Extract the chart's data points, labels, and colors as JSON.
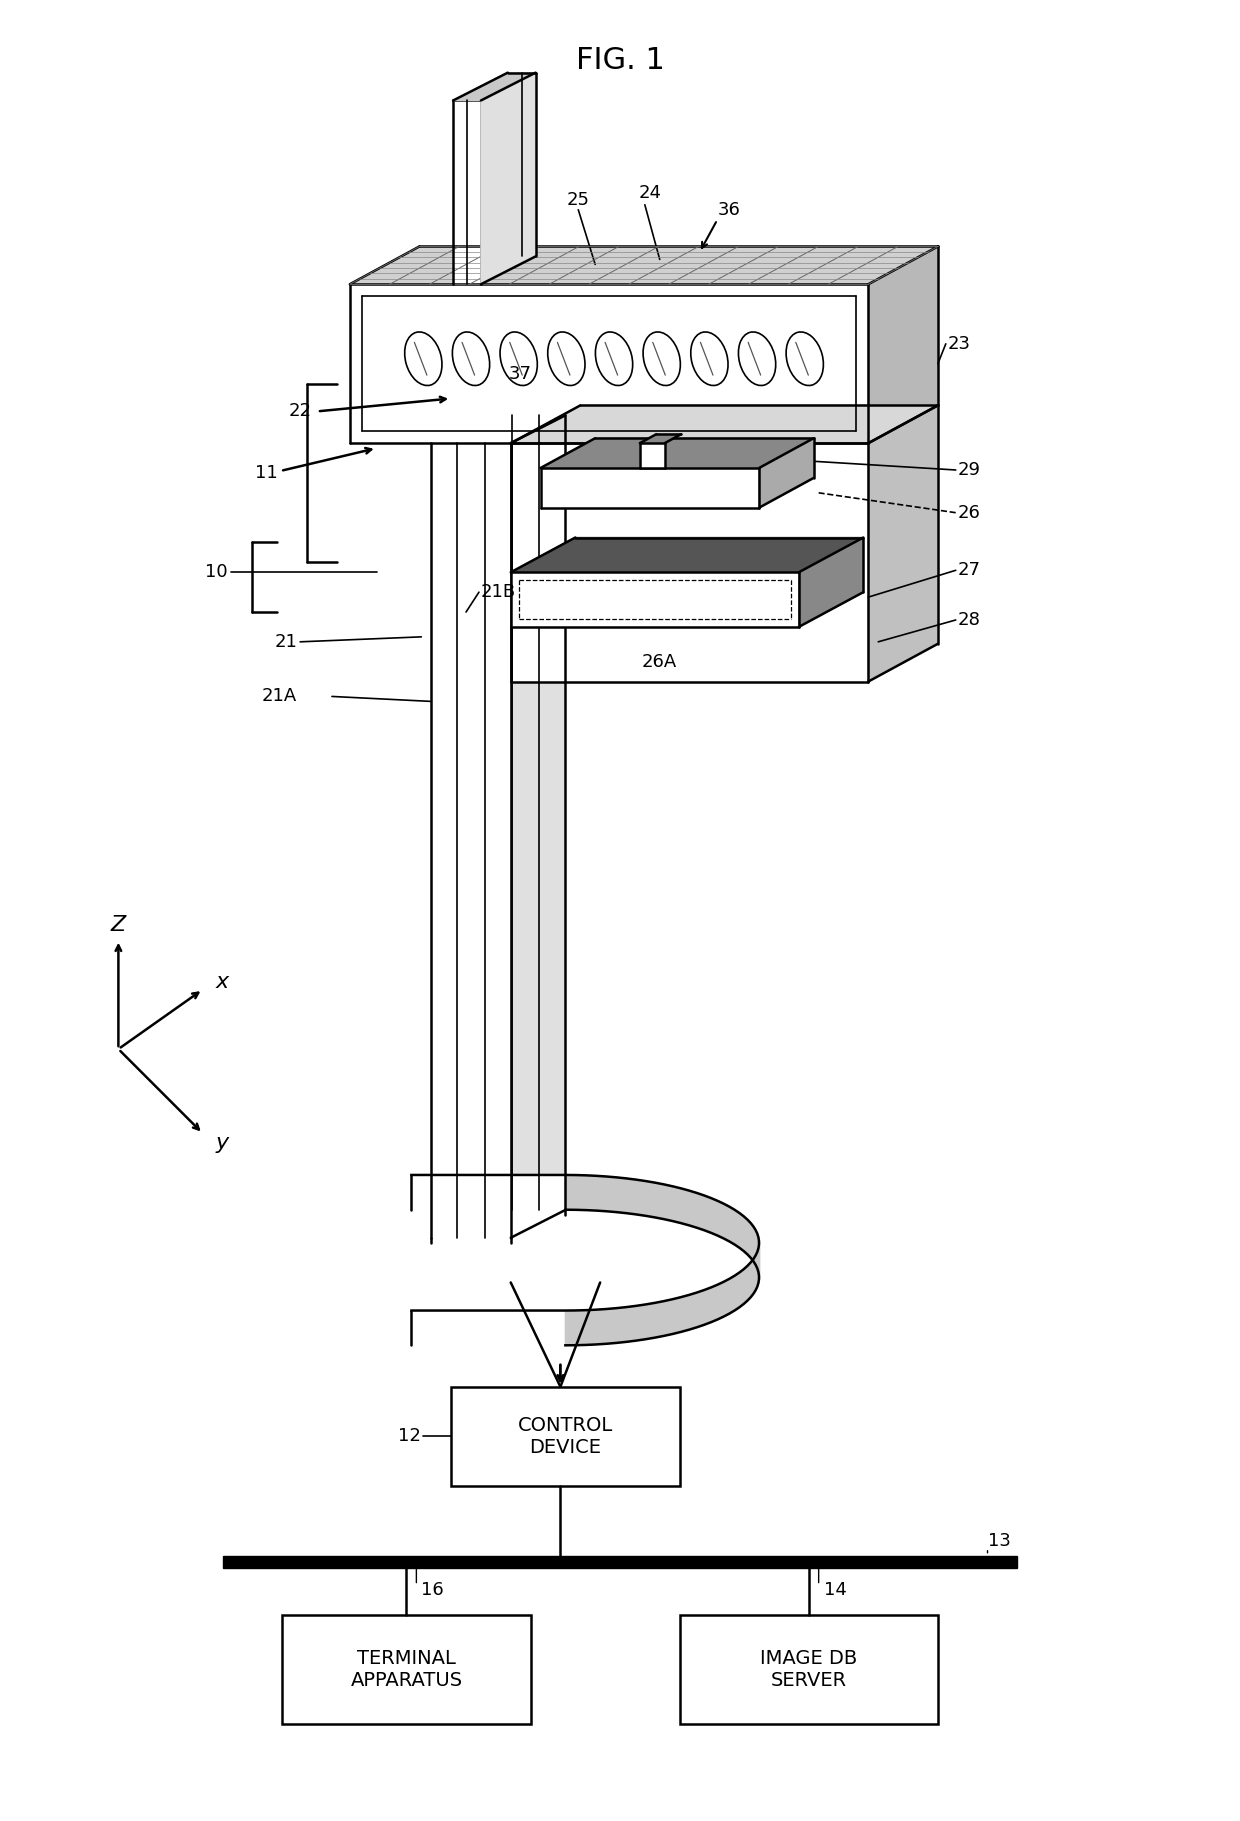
{
  "fig_width": 12.4,
  "fig_height": 18.21,
  "bg_color": "#ffffff",
  "title": "FIG. 1",
  "labels": {
    "control_device": "CONTROL\nDEVICE",
    "terminal_apparatus": "TERMINAL\nAPPARATUS",
    "image_db_server": "IMAGE DB\nSERVER"
  }
}
